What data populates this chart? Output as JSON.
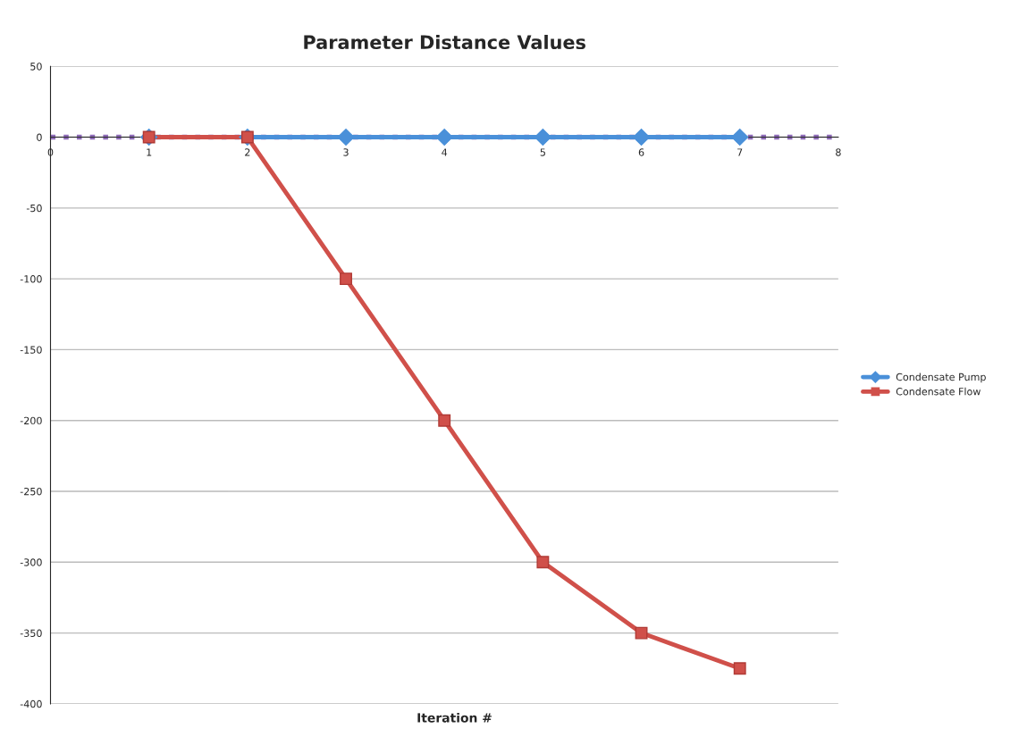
{
  "chart_data": {
    "type": "line",
    "title": "Parameter Distance Values",
    "xlabel": "Iteration #",
    "x": [
      1,
      2,
      3,
      4,
      5,
      6,
      7
    ],
    "series": [
      {
        "name": "Condensate Pump",
        "color": "#4a90d9",
        "marker": "diamond",
        "values": [
          0,
          0,
          0,
          0,
          0,
          0,
          0
        ]
      },
      {
        "name": "Condensate Flow",
        "color": "#d0504a",
        "marker": "square",
        "values": [
          0,
          0,
          -100,
          -200,
          -300,
          -350,
          -375
        ]
      }
    ],
    "xlim": [
      0,
      8
    ],
    "xticks": [
      0,
      1,
      2,
      3,
      4,
      5,
      6,
      7,
      8
    ],
    "ylim": [
      -400,
      50
    ],
    "yticks": [
      -400,
      -350,
      -300,
      -250,
      -200,
      -150,
      -100,
      -50,
      0,
      50
    ],
    "grid": "y",
    "legend": "right",
    "ref_lines": [
      {
        "axis": "y",
        "value": 0,
        "color": "#8e6bb8",
        "line_style": "dotted"
      }
    ]
  }
}
